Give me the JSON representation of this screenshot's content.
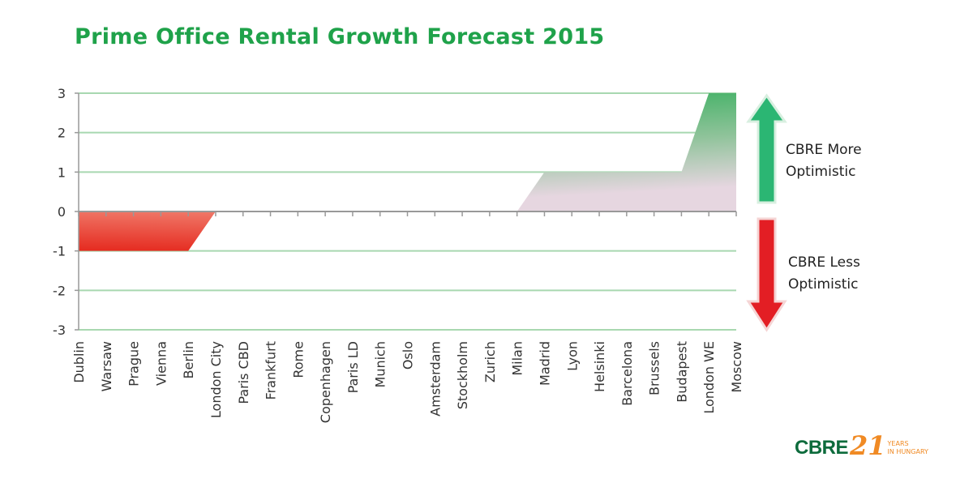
{
  "chart_data": {
    "type": "area",
    "title": "Prime Office Rental Growth Forecast 2015",
    "xlabel": "",
    "ylabel": "",
    "categories": [
      "Dublin",
      "Warsaw",
      "Prague",
      "Vienna",
      "Berlin",
      "London City",
      "Paris CBD",
      "Frankfurt",
      "Rome",
      "Copenhagen",
      "Paris LD",
      "Munich",
      "Oslo",
      "Amsterdam",
      "Stockholm",
      "Zurich",
      "Milan",
      "Madrid",
      "Lyon",
      "Helsinki",
      "Barcelona",
      "Brussels",
      "Budapest",
      "London WE",
      "Moscow"
    ],
    "values": [
      -1,
      -1,
      -1,
      -1,
      -1,
      0,
      0,
      0,
      0,
      0,
      0,
      0,
      0,
      0,
      0,
      0,
      0,
      1,
      1,
      1,
      1,
      1,
      1,
      3,
      3
    ],
    "ylim": [
      -3,
      3
    ],
    "yticks": [
      "-3",
      "-2",
      "-1",
      "0",
      "1",
      "2",
      "3"
    ],
    "grid": true,
    "annotations": {
      "up": "CBRE More Optimistic",
      "up_lines": [
        "CBRE More",
        "Optimistic"
      ],
      "down": "CBRE Less Optimistic",
      "down_lines": [
        "CBRE Less",
        "Optimistic"
      ]
    },
    "colors": {
      "positive": "#1fa24a",
      "negative": "#e8231f",
      "grid": "#a8d8b0",
      "arrow_up": "#2bb673",
      "arrow_down": "#e31e24"
    }
  },
  "logo": {
    "brand": "CBRE",
    "number": "21",
    "line1": "YEARS",
    "line2": "IN HUNGARY"
  }
}
